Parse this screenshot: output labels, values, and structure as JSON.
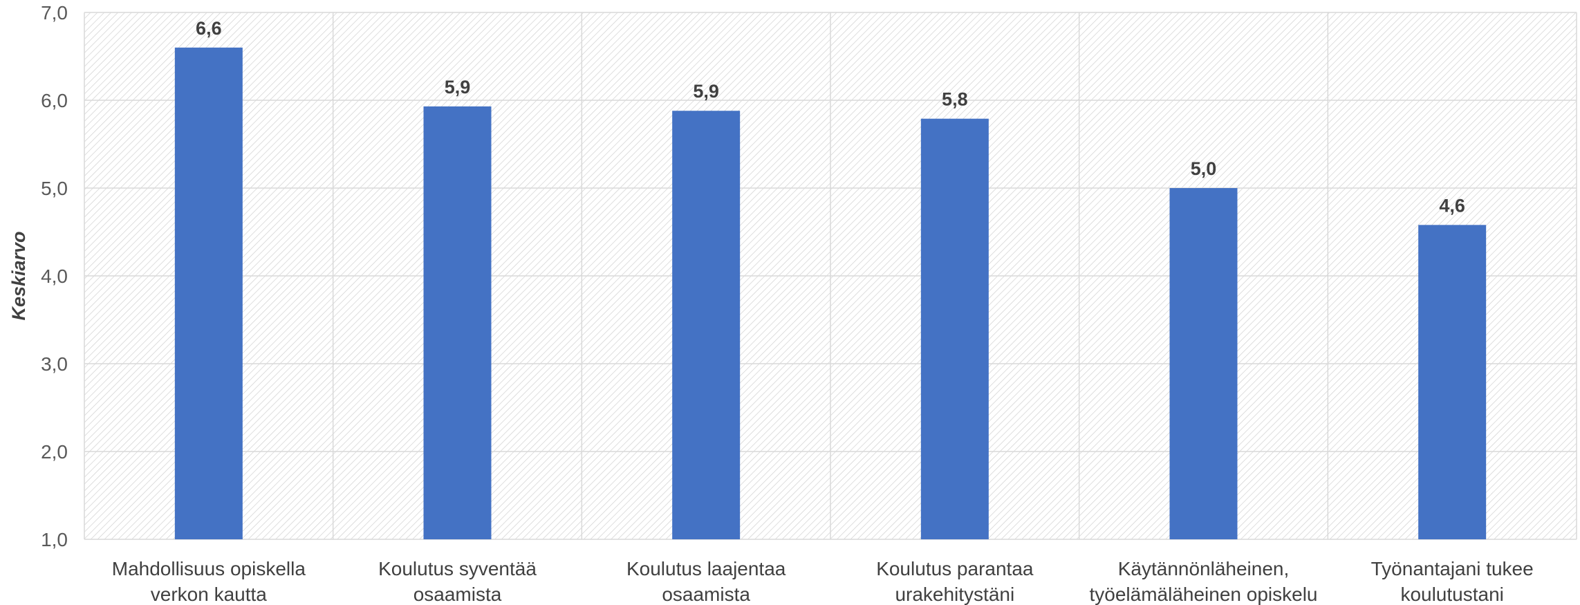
{
  "chart_data": {
    "type": "bar",
    "ylabel": "Keskiarvo",
    "xlabel": "",
    "categories": [
      [
        "Mahdollisuus opiskella",
        "verkon kautta"
      ],
      [
        "Koulutus syventää",
        "osaamista"
      ],
      [
        "Koulutus laajentaa",
        "osaamista"
      ],
      [
        "Koulutus parantaa",
        "urakehitystäni"
      ],
      [
        "Käytännönläheinen,",
        "työelämäläheinen opiskelu"
      ],
      [
        "Työnantajani tukee",
        "koulutustani"
      ]
    ],
    "values": [
      6.6,
      5.93,
      5.88,
      5.79,
      5.0,
      4.58
    ],
    "value_labels": [
      "6,6",
      "5,9",
      "5,9",
      "5,8",
      "5,0",
      "4,6"
    ],
    "ylim": [
      1.0,
      7.0
    ],
    "yticks": [
      1.0,
      2.0,
      3.0,
      4.0,
      5.0,
      6.0,
      7.0
    ],
    "ytick_labels": [
      "1,0",
      "2,0",
      "3,0",
      "4,0",
      "5,0",
      "6,0",
      "7,0"
    ],
    "grid": true,
    "colors": {
      "bar": "#4472C4",
      "grid": "#D9D9D9",
      "hatch": "#D0D0D0"
    }
  }
}
